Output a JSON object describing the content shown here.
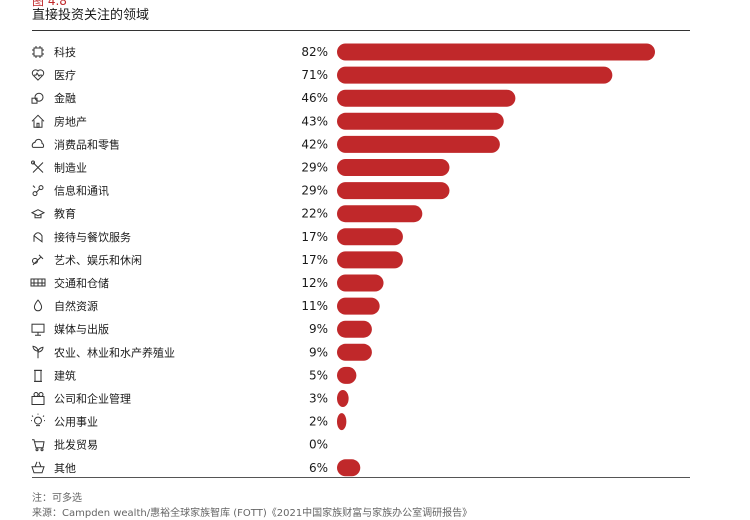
{
  "figure_label": "图 4.8",
  "chart_data": {
    "type": "bar",
    "orientation": "horizontal",
    "title": "直接投资关注的领域",
    "unit": "%",
    "bar_color": "#c0282a",
    "grid": false,
    "categories": [
      "科技",
      "医疗",
      "金融",
      "房地产",
      "消费品和零售",
      "制造业",
      "信息和通讯",
      "教育",
      "接待与餐饮服务",
      "艺术、娱乐和休闲",
      "交通和仓储",
      "自然资源",
      "媒体与出版",
      "农业、林业和水产养殖业",
      "建筑",
      "公司和企业管理",
      "公用事业",
      "批发贸易",
      "其他"
    ],
    "icons": [
      "chip-icon",
      "heart-pulse-icon",
      "coins-icon",
      "house-icon",
      "cloud-shopping-icon",
      "tools-icon",
      "network-icon",
      "graduation-cap-icon",
      "hand-icon",
      "paint-brush-icon",
      "truck-icon",
      "water-drop-icon",
      "monitor-icon",
      "plant-icon",
      "building-column-icon",
      "office-people-icon",
      "lightbulb-icon",
      "cart-icon",
      "basket-icon"
    ],
    "value_labels": [
      "82%",
      "71%",
      "46%",
      "43%",
      "42%",
      "29%",
      "29%",
      "22%",
      "17%",
      "17%",
      "12%",
      "11%",
      "9%",
      "9%",
      "5%",
      "3%",
      "2%",
      "0%",
      "6%"
    ],
    "values": [
      82,
      71,
      46,
      43,
      42,
      29,
      29,
      22,
      17,
      17,
      12,
      11,
      9,
      9,
      5,
      3,
      2,
      0,
      6
    ],
    "xlim": [
      0,
      82
    ]
  },
  "notes": {
    "note": "注：可多选",
    "source": "来源：Campden wealth/惠裕全球家族智库 (FOTT)《2021中国家族财富与家族办公室调研报告》"
  }
}
